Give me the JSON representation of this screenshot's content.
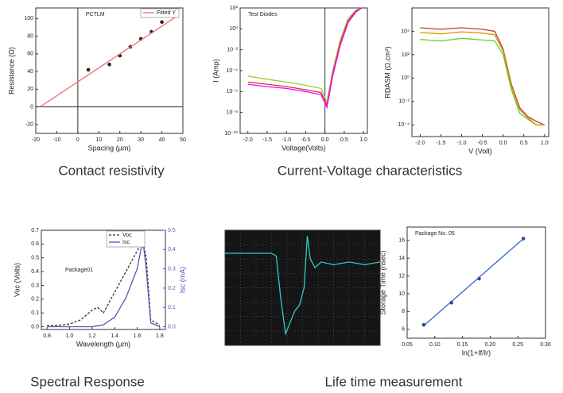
{
  "captions": [
    "Contact resistivity",
    "Current-Voltage characteristics",
    "Spectral Response",
    "Life time measurement"
  ],
  "chart_data": [
    {
      "type": "scatter",
      "xlabel": "Spacing (µm)",
      "ylabel": "Resistance (Ω)",
      "xlim": [
        -20,
        50
      ],
      "xticks": [
        -20,
        -10,
        0,
        10,
        20,
        30,
        40,
        50
      ],
      "ylim": [
        -30,
        112
      ],
      "yticks": [
        -20,
        0,
        20,
        40,
        60,
        80,
        100
      ],
      "zero_lines": true,
      "annotations": [
        "PCTLM"
      ],
      "legend": "upper right",
      "series": [
        {
          "style": "points",
          "color": "#222222",
          "x": [
            5,
            15,
            20,
            25,
            30,
            35,
            40
          ],
          "values": [
            42,
            48,
            58,
            68,
            77,
            85,
            96
          ]
        },
        {
          "name": "Fitted Y",
          "style": "line",
          "color": "#f07070",
          "x": [
            -18,
            48
          ],
          "values": [
            0,
            104
          ]
        }
      ]
    },
    {
      "type": "line",
      "xlabel": "Voltage(Volts)",
      "ylabel": "I (Amp)",
      "log_y": true,
      "xlim": [
        -2.2,
        1.1
      ],
      "xticks": [
        {
          "value": -2,
          "label": "-2.0"
        },
        -1.5,
        {
          "value": -1,
          "label": "-1.0"
        },
        -0.5,
        {
          "value": 0,
          "label": "0.0"
        },
        0.5,
        {
          "value": 1,
          "label": "1.0"
        }
      ],
      "ylim": [
        1e-10,
        100
      ],
      "yticks": [
        {
          "value": 1e-10,
          "label": "10⁻¹⁰"
        },
        {
          "value": 1e-08,
          "label": "10⁻⁸"
        },
        {
          "value": 1e-06,
          "label": "10⁻⁶"
        },
        {
          "value": 0.0001,
          "label": "10⁻⁴"
        },
        {
          "value": 0.01,
          "label": "10⁻²"
        },
        {
          "value": 1,
          "label": "10⁰"
        },
        {
          "value": 100,
          "label": "10²"
        }
      ],
      "zero_lines": true,
      "annotations": [
        "Test Diodes"
      ],
      "series": [
        {
          "style": "line",
          "color": "#9acd32",
          "x": [
            -2,
            -1.5,
            -1,
            -0.5,
            -0.1,
            0.05,
            0.2,
            0.4,
            0.6,
            0.8,
            0.95
          ],
          "values": [
            3e-05,
            1.5e-05,
            8e-06,
            4e-06,
            2e-06,
            1e-07,
            0.0001,
            0.1,
            10,
            60,
            100
          ]
        },
        {
          "style": "line",
          "color": "#cc3333",
          "x": [
            -2,
            -1.5,
            -1,
            -0.5,
            -0.1,
            0.05,
            0.2,
            0.4,
            0.6,
            0.8,
            0.95
          ],
          "values": [
            8e-06,
            5e-06,
            3e-06,
            1.5e-06,
            8e-07,
            5e-08,
            5e-05,
            0.05,
            6,
            50,
            100
          ]
        },
        {
          "style": "line",
          "color": "#ff00ff",
          "x": [
            -2,
            -1.5,
            -1,
            -0.5,
            -0.1,
            0.05,
            0.2,
            0.4,
            0.6,
            0.8,
            0.95
          ],
          "values": [
            5e-06,
            3e-06,
            2e-06,
            1e-06,
            5e-07,
            3e-08,
            3e-05,
            0.03,
            4,
            40,
            100
          ]
        }
      ]
    },
    {
      "type": "line",
      "xlabel": "V (Volt)",
      "ylabel": "RDASM (Ω.cm²)",
      "log_y": true,
      "xlim": [
        -2.2,
        1.1
      ],
      "xticks": [
        {
          "value": -2,
          "label": "-2.0"
        },
        -1.5,
        {
          "value": -1,
          "label": "-1.0"
        },
        -0.5,
        {
          "value": 0,
          "label": "0.0"
        },
        0.5,
        {
          "value": 1,
          "label": "1.0"
        }
      ],
      "ylim": [
        1e-05,
        1000000.0
      ],
      "yticks": [
        {
          "value": 0.0001,
          "label": "10⁻⁴"
        },
        {
          "value": 0.01,
          "label": "10⁻²"
        },
        {
          "value": 1,
          "label": "10⁰"
        },
        {
          "value": 100,
          "label": "10²"
        },
        {
          "value": 10000,
          "label": "10⁴"
        }
      ],
      "series": [
        {
          "style": "line",
          "color": "#66cc33",
          "x": [
            -2,
            -1.5,
            -1,
            -0.5,
            -0.2,
            0,
            0.2,
            0.4,
            0.6,
            0.8,
            1
          ],
          "values": [
            2000,
            1500,
            2500,
            1800,
            1500,
            100,
            0.1,
            0.001,
            0.0003,
            0.0001,
            0.0001
          ]
        },
        {
          "style": "line",
          "color": "#cc3333",
          "x": [
            -2,
            -1.5,
            -1,
            -0.5,
            -0.2,
            0,
            0.2,
            0.4,
            0.6,
            0.8,
            1
          ],
          "values": [
            20000,
            15000,
            20000,
            15000,
            10000,
            300,
            0.3,
            0.003,
            0.0005,
            0.0002,
            0.0001
          ]
        },
        {
          "style": "line",
          "color": "#c8a000",
          "x": [
            -2,
            -1.5,
            -1,
            -0.5,
            -0.2,
            0,
            0.2,
            0.4,
            0.6,
            0.8,
            1
          ],
          "values": [
            8000,
            6000,
            9000,
            7000,
            5000,
            200,
            0.2,
            0.002,
            0.0004,
            0.0001,
            0.0001
          ]
        }
      ]
    },
    {
      "type": "line",
      "xlabel": "Wavelength (µm)",
      "ylabel": "Voc (Volts)",
      "y2label": "Isc (mA)",
      "xlim": [
        0.75,
        1.85
      ],
      "xticks": [
        0.8,
        {
          "value": 1,
          "label": "1.0"
        },
        1.2,
        1.4,
        1.6,
        1.8
      ],
      "ylim": [
        -0.02,
        0.7
      ],
      "yticks": [
        {
          "value": 0,
          "label": "0.0"
        },
        0.1,
        0.2,
        0.3,
        0.4,
        0.5,
        0.6,
        0.7
      ],
      "y2lim": [
        -0.0143,
        0.5
      ],
      "y2ticks": [
        {
          "value": 0,
          "label": "0.0"
        },
        0.1,
        0.2,
        0.3,
        0.4,
        0.5
      ],
      "annotations": [
        "Package01"
      ],
      "legend": "upper left",
      "series": [
        {
          "name": "Voc",
          "style": "dashed",
          "color": "#333333",
          "x": [
            0.8,
            0.9,
            1,
            1.1,
            1.2,
            1.25,
            1.3,
            1.4,
            1.5,
            1.6,
            1.65,
            1.68,
            1.72,
            1.8
          ],
          "values": [
            0.01,
            0.01,
            0.02,
            0.05,
            0.12,
            0.14,
            0.1,
            0.25,
            0.4,
            0.55,
            0.62,
            0.5,
            0.05,
            0.01
          ]
        },
        {
          "name": "Isc",
          "style": "line",
          "axis": "y2",
          "color": "#5555bb",
          "x": [
            0.8,
            0.9,
            1,
            1.1,
            1.2,
            1.25,
            1.3,
            1.4,
            1.5,
            1.6,
            1.65,
            1.68,
            1.72,
            1.8
          ],
          "values": [
            0,
            0,
            0,
            0,
            0,
            0.005,
            0.01,
            0.05,
            0.15,
            0.3,
            0.45,
            0.3,
            0.02,
            0
          ]
        }
      ]
    },
    {
      "type": "line",
      "background": "#151515",
      "xlim": [
        0,
        10
      ],
      "ylim": [
        -1,
        1
      ],
      "series": [
        {
          "style": "line",
          "color": "#33cccc",
          "x": [
            0,
            1,
            2,
            3,
            3.3,
            3.6,
            3.9,
            4.2,
            4.5,
            4.8,
            5.1,
            5.3,
            5.5,
            5.8,
            6.2,
            7,
            8,
            9,
            10
          ],
          "values": [
            0.6,
            0.6,
            0.6,
            0.6,
            0.55,
            -0.2,
            -0.8,
            -0.6,
            -0.4,
            -0.3,
            0,
            0.9,
            0.5,
            0.35,
            0.45,
            0.4,
            0.45,
            0.4,
            0.45
          ]
        }
      ]
    },
    {
      "type": "scatter",
      "xlabel": "ln(1+If/Ir)",
      "ylabel": "Storage Time (nsec)",
      "xlim": [
        0.05,
        0.3
      ],
      "xticks": [
        0.05,
        {
          "value": 0.1,
          "label": "0.10"
        },
        0.15,
        {
          "value": 0.2,
          "label": "0.20"
        },
        0.25,
        {
          "value": 0.3,
          "label": "0.30"
        }
      ],
      "ylim": [
        5,
        17.5
      ],
      "yticks": [
        6,
        8,
        10,
        12,
        14,
        16
      ],
      "annotations": [
        "Package No. 05"
      ],
      "series": [
        {
          "style": "points",
          "color": "#334488",
          "x": [
            0.08,
            0.13,
            0.18,
            0.26
          ],
          "values": [
            6.5,
            9,
            11.7,
            16.2
          ]
        },
        {
          "style": "line",
          "color": "#3366cc",
          "x": [
            0.08,
            0.26
          ],
          "values": [
            6.4,
            16.2
          ]
        }
      ]
    }
  ]
}
